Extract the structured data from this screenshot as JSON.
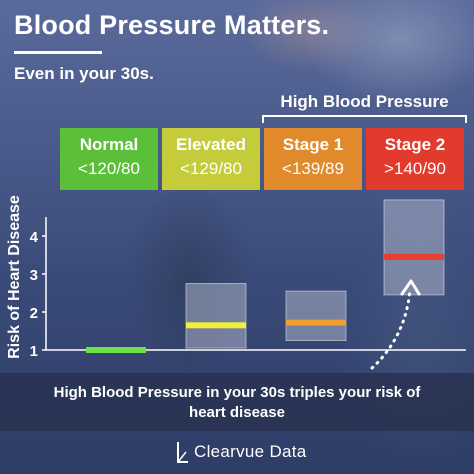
{
  "header": {
    "title": "Blood Pressure Matters.",
    "subtitle": "Even in your 30s."
  },
  "group_label": "High Blood Pressure",
  "categories": [
    {
      "name": "Normal",
      "range": "<120/80",
      "color": "#5cbf3a"
    },
    {
      "name": "Elevated",
      "range": "<129/80",
      "color": "#c5cc3c"
    },
    {
      "name": "Stage 1",
      "range": "<139/89",
      "color": "#e08a2c"
    },
    {
      "name": "Stage 2",
      "range": ">140/90",
      "color": "#e23a2c"
    }
  ],
  "caption": "High Blood Pressure in your 30s triples your risk of heart disease",
  "brand": {
    "name": "Clearvue Data"
  },
  "chart_data": {
    "type": "bar",
    "ylabel": "Risk of Heart Disease",
    "xlabel": "",
    "ylim": [
      1,
      4.5
    ],
    "yticks": [
      1,
      2,
      3,
      4
    ],
    "categories": [
      "Normal",
      "Elevated",
      "Stage 1",
      "Stage 2"
    ],
    "estimates": [
      1.0,
      1.65,
      1.72,
      3.45
    ],
    "ranges": [
      null,
      [
        1.05,
        2.75
      ],
      [
        1.25,
        2.55
      ],
      [
        2.45,
        4.95
      ]
    ],
    "estimate_colors": [
      "#6ee04a",
      "#f2ef3a",
      "#f0a030",
      "#e8402c"
    ],
    "grid": false,
    "legend": "none"
  }
}
